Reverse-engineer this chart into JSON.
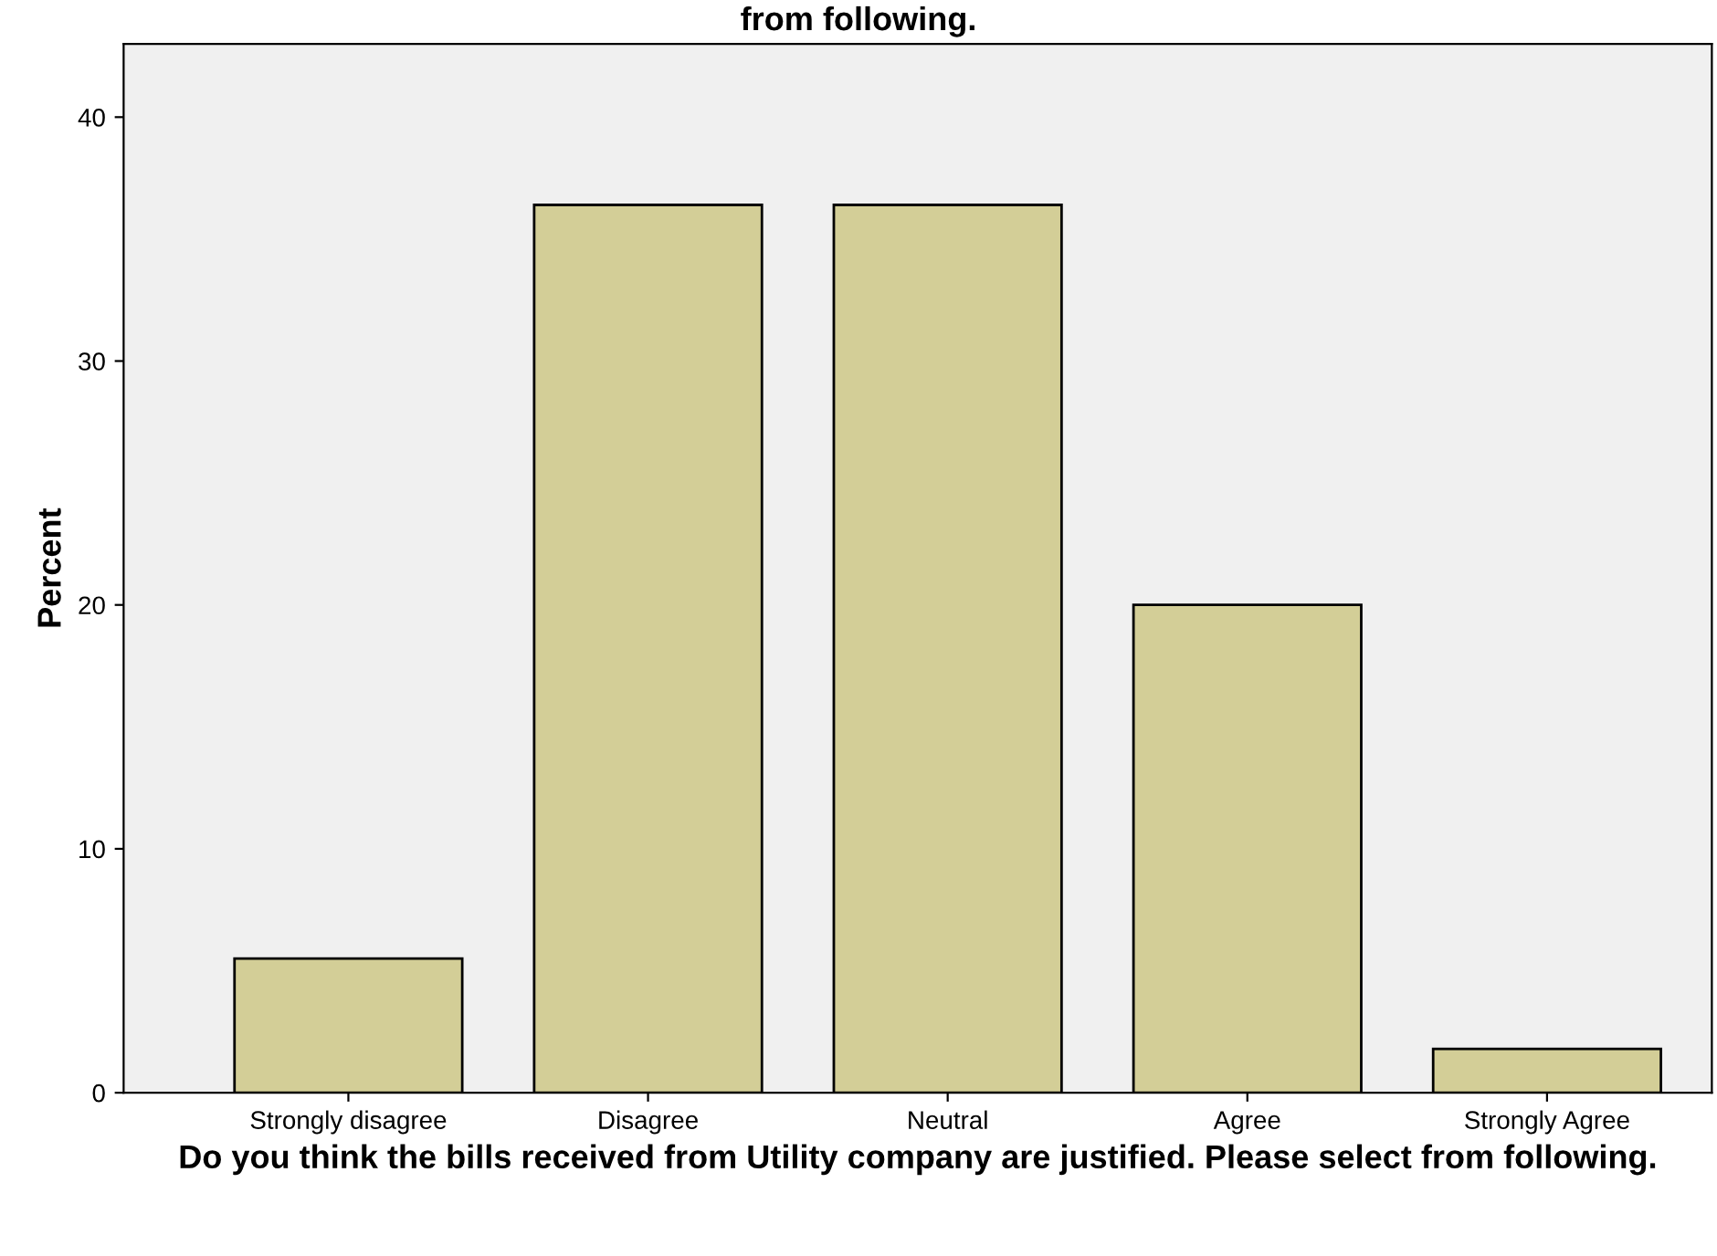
{
  "chart_data": {
    "type": "bar",
    "title": "from following.",
    "xlabel": "Do you think the bills received from Utility company are justified. Please select from following.",
    "ylabel": "Percent",
    "categories": [
      "Strongly disagree",
      "Disagree",
      "Neutral",
      "Agree",
      "Strongly Agree"
    ],
    "values": [
      5.5,
      36.4,
      36.4,
      20.0,
      1.8
    ],
    "color": "#d3ce97",
    "ylim": [
      0,
      43
    ],
    "yticks": [
      0,
      10,
      20,
      30,
      40
    ],
    "grid": false,
    "legend": false
  }
}
